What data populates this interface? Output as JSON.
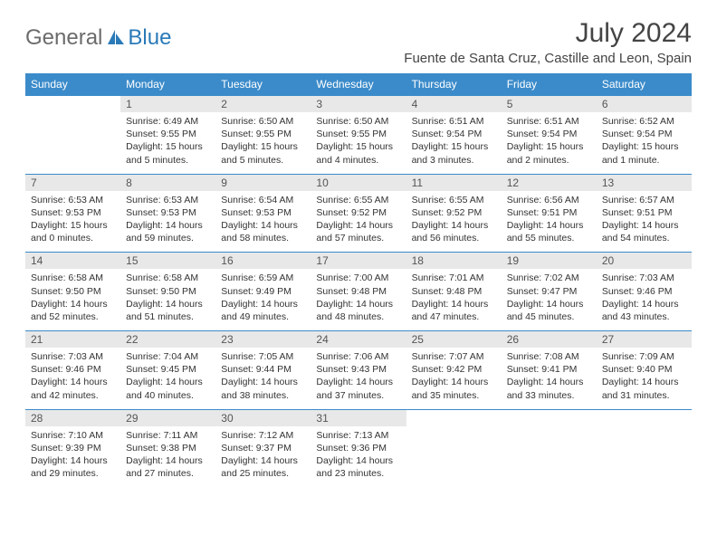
{
  "logo": {
    "general": "General",
    "blue": "Blue"
  },
  "title": "July 2024",
  "location": "Fuente de Santa Cruz, Castille and Leon, Spain",
  "weekdays": [
    "Sunday",
    "Monday",
    "Tuesday",
    "Wednesday",
    "Thursday",
    "Friday",
    "Saturday"
  ],
  "colors": {
    "header_bg": "#3b8bca",
    "header_text": "#ffffff",
    "daynum_bg": "#e8e8e8",
    "daynum_text": "#555555",
    "body_text": "#333333",
    "row_border": "#3b8bca",
    "logo_general": "#6b6b6b",
    "logo_blue": "#2a7ab8"
  },
  "weeks": [
    [
      {
        "n": "",
        "sr": "",
        "ss": "",
        "dl": ""
      },
      {
        "n": "1",
        "sr": "Sunrise: 6:49 AM",
        "ss": "Sunset: 9:55 PM",
        "dl": "Daylight: 15 hours and 5 minutes."
      },
      {
        "n": "2",
        "sr": "Sunrise: 6:50 AM",
        "ss": "Sunset: 9:55 PM",
        "dl": "Daylight: 15 hours and 5 minutes."
      },
      {
        "n": "3",
        "sr": "Sunrise: 6:50 AM",
        "ss": "Sunset: 9:55 PM",
        "dl": "Daylight: 15 hours and 4 minutes."
      },
      {
        "n": "4",
        "sr": "Sunrise: 6:51 AM",
        "ss": "Sunset: 9:54 PM",
        "dl": "Daylight: 15 hours and 3 minutes."
      },
      {
        "n": "5",
        "sr": "Sunrise: 6:51 AM",
        "ss": "Sunset: 9:54 PM",
        "dl": "Daylight: 15 hours and 2 minutes."
      },
      {
        "n": "6",
        "sr": "Sunrise: 6:52 AM",
        "ss": "Sunset: 9:54 PM",
        "dl": "Daylight: 15 hours and 1 minute."
      }
    ],
    [
      {
        "n": "7",
        "sr": "Sunrise: 6:53 AM",
        "ss": "Sunset: 9:53 PM",
        "dl": "Daylight: 15 hours and 0 minutes."
      },
      {
        "n": "8",
        "sr": "Sunrise: 6:53 AM",
        "ss": "Sunset: 9:53 PM",
        "dl": "Daylight: 14 hours and 59 minutes."
      },
      {
        "n": "9",
        "sr": "Sunrise: 6:54 AM",
        "ss": "Sunset: 9:53 PM",
        "dl": "Daylight: 14 hours and 58 minutes."
      },
      {
        "n": "10",
        "sr": "Sunrise: 6:55 AM",
        "ss": "Sunset: 9:52 PM",
        "dl": "Daylight: 14 hours and 57 minutes."
      },
      {
        "n": "11",
        "sr": "Sunrise: 6:55 AM",
        "ss": "Sunset: 9:52 PM",
        "dl": "Daylight: 14 hours and 56 minutes."
      },
      {
        "n": "12",
        "sr": "Sunrise: 6:56 AM",
        "ss": "Sunset: 9:51 PM",
        "dl": "Daylight: 14 hours and 55 minutes."
      },
      {
        "n": "13",
        "sr": "Sunrise: 6:57 AM",
        "ss": "Sunset: 9:51 PM",
        "dl": "Daylight: 14 hours and 54 minutes."
      }
    ],
    [
      {
        "n": "14",
        "sr": "Sunrise: 6:58 AM",
        "ss": "Sunset: 9:50 PM",
        "dl": "Daylight: 14 hours and 52 minutes."
      },
      {
        "n": "15",
        "sr": "Sunrise: 6:58 AM",
        "ss": "Sunset: 9:50 PM",
        "dl": "Daylight: 14 hours and 51 minutes."
      },
      {
        "n": "16",
        "sr": "Sunrise: 6:59 AM",
        "ss": "Sunset: 9:49 PM",
        "dl": "Daylight: 14 hours and 49 minutes."
      },
      {
        "n": "17",
        "sr": "Sunrise: 7:00 AM",
        "ss": "Sunset: 9:48 PM",
        "dl": "Daylight: 14 hours and 48 minutes."
      },
      {
        "n": "18",
        "sr": "Sunrise: 7:01 AM",
        "ss": "Sunset: 9:48 PM",
        "dl": "Daylight: 14 hours and 47 minutes."
      },
      {
        "n": "19",
        "sr": "Sunrise: 7:02 AM",
        "ss": "Sunset: 9:47 PM",
        "dl": "Daylight: 14 hours and 45 minutes."
      },
      {
        "n": "20",
        "sr": "Sunrise: 7:03 AM",
        "ss": "Sunset: 9:46 PM",
        "dl": "Daylight: 14 hours and 43 minutes."
      }
    ],
    [
      {
        "n": "21",
        "sr": "Sunrise: 7:03 AM",
        "ss": "Sunset: 9:46 PM",
        "dl": "Daylight: 14 hours and 42 minutes."
      },
      {
        "n": "22",
        "sr": "Sunrise: 7:04 AM",
        "ss": "Sunset: 9:45 PM",
        "dl": "Daylight: 14 hours and 40 minutes."
      },
      {
        "n": "23",
        "sr": "Sunrise: 7:05 AM",
        "ss": "Sunset: 9:44 PM",
        "dl": "Daylight: 14 hours and 38 minutes."
      },
      {
        "n": "24",
        "sr": "Sunrise: 7:06 AM",
        "ss": "Sunset: 9:43 PM",
        "dl": "Daylight: 14 hours and 37 minutes."
      },
      {
        "n": "25",
        "sr": "Sunrise: 7:07 AM",
        "ss": "Sunset: 9:42 PM",
        "dl": "Daylight: 14 hours and 35 minutes."
      },
      {
        "n": "26",
        "sr": "Sunrise: 7:08 AM",
        "ss": "Sunset: 9:41 PM",
        "dl": "Daylight: 14 hours and 33 minutes."
      },
      {
        "n": "27",
        "sr": "Sunrise: 7:09 AM",
        "ss": "Sunset: 9:40 PM",
        "dl": "Daylight: 14 hours and 31 minutes."
      }
    ],
    [
      {
        "n": "28",
        "sr": "Sunrise: 7:10 AM",
        "ss": "Sunset: 9:39 PM",
        "dl": "Daylight: 14 hours and 29 minutes."
      },
      {
        "n": "29",
        "sr": "Sunrise: 7:11 AM",
        "ss": "Sunset: 9:38 PM",
        "dl": "Daylight: 14 hours and 27 minutes."
      },
      {
        "n": "30",
        "sr": "Sunrise: 7:12 AM",
        "ss": "Sunset: 9:37 PM",
        "dl": "Daylight: 14 hours and 25 minutes."
      },
      {
        "n": "31",
        "sr": "Sunrise: 7:13 AM",
        "ss": "Sunset: 9:36 PM",
        "dl": "Daylight: 14 hours and 23 minutes."
      },
      {
        "n": "",
        "sr": "",
        "ss": "",
        "dl": ""
      },
      {
        "n": "",
        "sr": "",
        "ss": "",
        "dl": ""
      },
      {
        "n": "",
        "sr": "",
        "ss": "",
        "dl": ""
      }
    ]
  ]
}
